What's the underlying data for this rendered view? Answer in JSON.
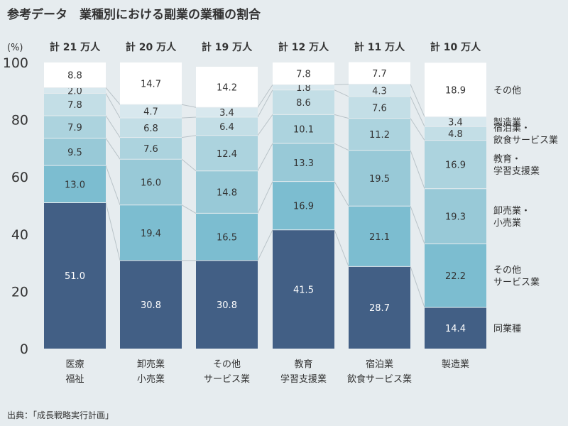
{
  "chart_data": {
    "type": "bar",
    "stacked": true,
    "percent": true,
    "title": "参考データ　業種別における副業の業種の割合",
    "ylabel": "(%)",
    "ylim": [
      0,
      100
    ],
    "yticks": [
      0,
      20,
      40,
      60,
      80,
      100
    ],
    "grid": false,
    "legend_position": "right",
    "source": "出典：「成長戦略実行計画」",
    "categories": [
      [
        "医療",
        "福祉"
      ],
      [
        "卸売業",
        "小売業"
      ],
      [
        "その他",
        "サービス業"
      ],
      [
        "教育",
        "学習支援業"
      ],
      [
        "宿泊業",
        "飲食サービス業"
      ],
      [
        "製造業"
      ]
    ],
    "totals": [
      "計 21 万人",
      "計 20 万人",
      "計 19 万人",
      "計 12 万人",
      "計 11 万人",
      "計 10 万人"
    ],
    "series": [
      {
        "name": [
          "同業種"
        ],
        "color": "#425f85",
        "label_color": "#ffffff",
        "values": [
          51.0,
          30.8,
          30.8,
          41.5,
          28.7,
          14.4
        ]
      },
      {
        "name": [
          "その他",
          "サービス業"
        ],
        "color": "#7cbdd0",
        "label_color": "#333333",
        "values": [
          13.0,
          19.4,
          16.5,
          16.9,
          21.1,
          22.2
        ]
      },
      {
        "name": [
          "卸売業・",
          "小売業"
        ],
        "color": "#98c9d7",
        "label_color": "#333333",
        "values": [
          9.5,
          16.0,
          14.8,
          13.3,
          19.5,
          19.3
        ]
      },
      {
        "name": [
          "教育・",
          "学習支援業"
        ],
        "color": "#acd3de",
        "label_color": "#333333",
        "values": [
          7.9,
          7.6,
          12.4,
          10.1,
          11.2,
          16.9
        ]
      },
      {
        "name": [
          "宿泊業・",
          "飲食サービス業"
        ],
        "color": "#c3dee6",
        "label_color": "#333333",
        "values": [
          7.8,
          6.8,
          6.4,
          8.6,
          7.6,
          4.8
        ]
      },
      {
        "name": [
          "製造業"
        ],
        "color": "#d8e8ee",
        "label_color": "#333333",
        "values": [
          2.0,
          4.7,
          3.4,
          1.8,
          4.3,
          3.4
        ]
      },
      {
        "name": [
          "その他"
        ],
        "color": "#ffffff",
        "label_color": "#333333",
        "values": [
          8.8,
          14.7,
          14.2,
          7.8,
          7.7,
          18.9
        ]
      }
    ]
  }
}
